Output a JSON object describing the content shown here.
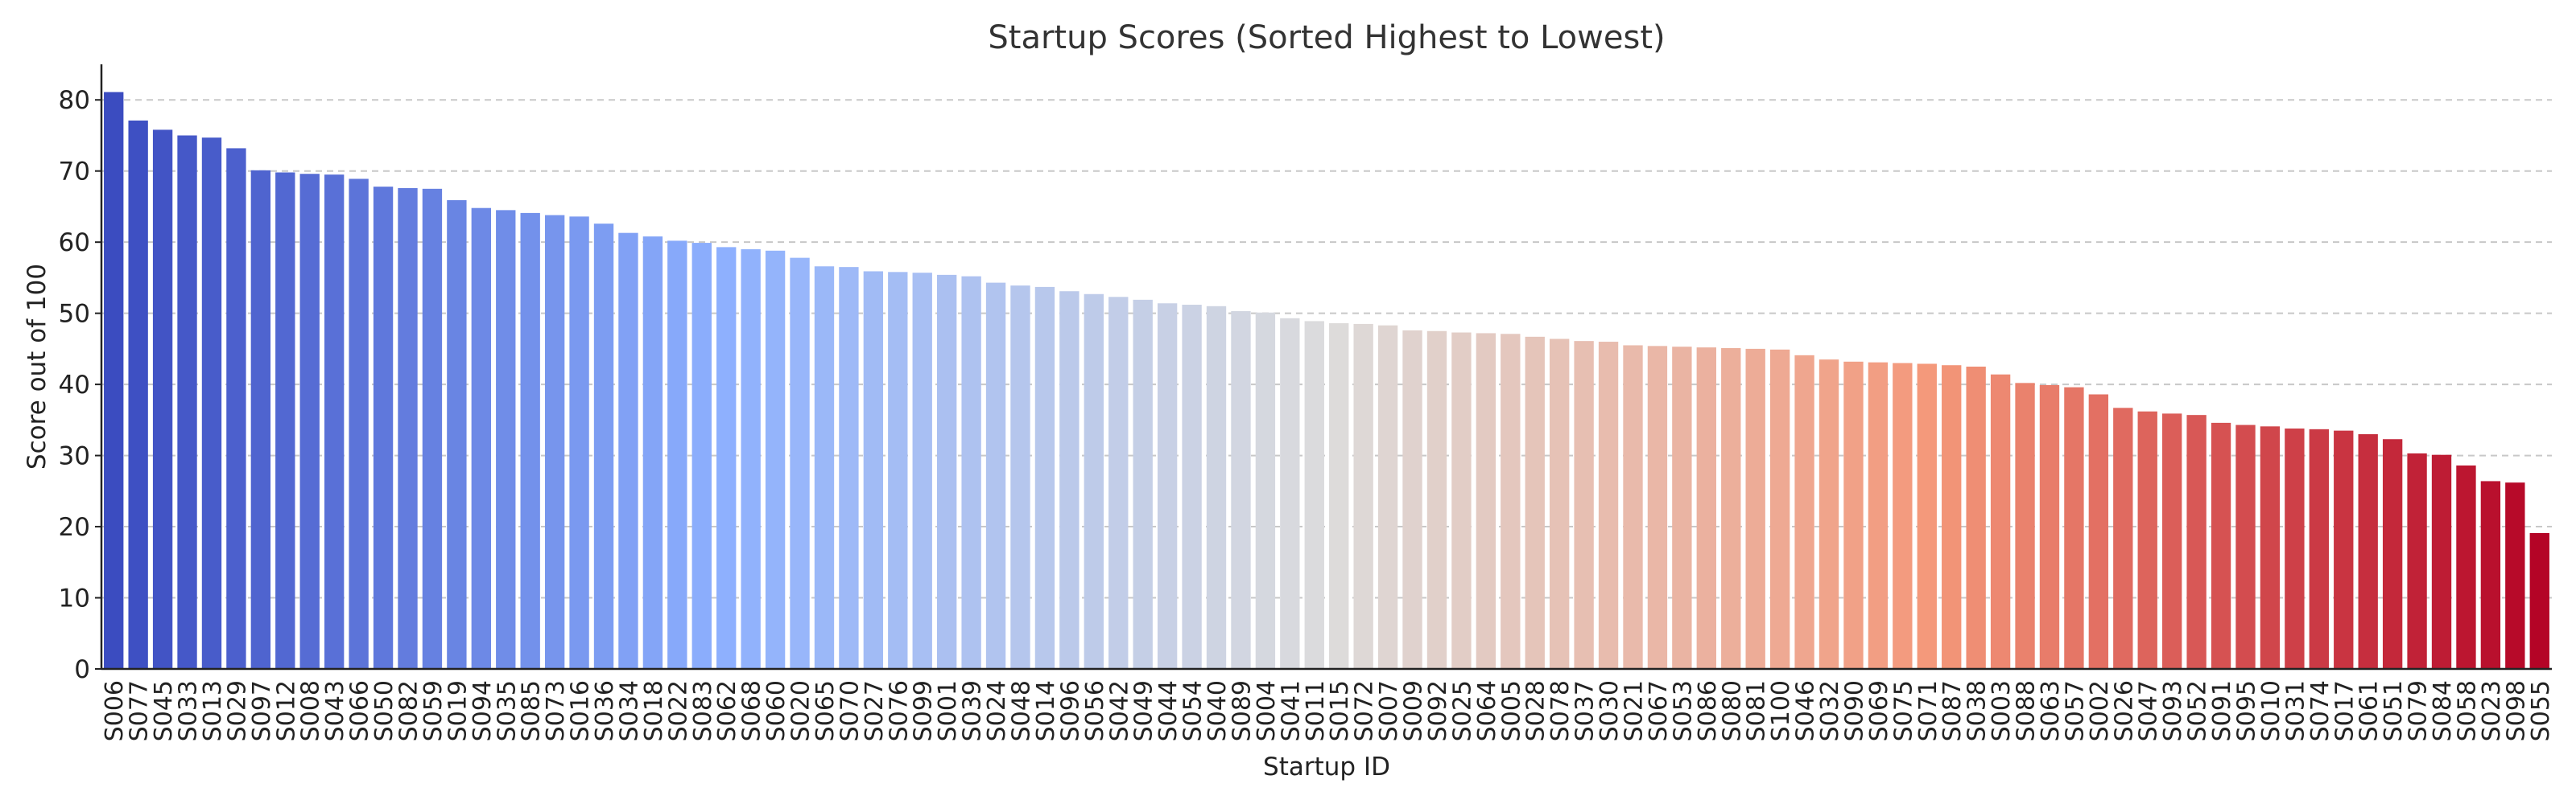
{
  "chart_data": {
    "type": "bar",
    "title": "Startup Scores (Sorted Highest to Lowest)",
    "xlabel": "Startup ID",
    "ylabel": "Score out of 100",
    "ylim": [
      0,
      85
    ],
    "yticks": [
      0,
      10,
      20,
      30,
      40,
      50,
      60,
      70,
      80
    ],
    "grid": "y-dashed",
    "colormap": "coolwarm",
    "colors": {
      "low_end": "#3b4cc0",
      "mid": "#dddcdc",
      "high_end": "#b40426"
    },
    "categories": [
      "S006",
      "S077",
      "S045",
      "S033",
      "S013",
      "S029",
      "S097",
      "S012",
      "S008",
      "S043",
      "S066",
      "S050",
      "S082",
      "S059",
      "S019",
      "S094",
      "S035",
      "S085",
      "S073",
      "S016",
      "S036",
      "S034",
      "S018",
      "S022",
      "S083",
      "S062",
      "S068",
      "S060",
      "S020",
      "S065",
      "S070",
      "S027",
      "S076",
      "S099",
      "S001",
      "S039",
      "S024",
      "S048",
      "S014",
      "S096",
      "S056",
      "S042",
      "S049",
      "S044",
      "S054",
      "S040",
      "S089",
      "S004",
      "S041",
      "S011",
      "S015",
      "S072",
      "S007",
      "S009",
      "S092",
      "S025",
      "S064",
      "S005",
      "S028",
      "S078",
      "S037",
      "S030",
      "S021",
      "S067",
      "S053",
      "S086",
      "S080",
      "S081",
      "S100",
      "S046",
      "S032",
      "S090",
      "S069",
      "S075",
      "S071",
      "S087",
      "S038",
      "S003",
      "S088",
      "S063",
      "S057",
      "S002",
      "S026",
      "S047",
      "S093",
      "S052",
      "S091",
      "S095",
      "S010",
      "S031",
      "S074",
      "S017",
      "S061",
      "S051",
      "S079",
      "S084",
      "S058",
      "S023",
      "S098",
      "S055"
    ],
    "values": [
      81.1,
      77.1,
      75.8,
      75.0,
      74.7,
      73.2,
      70.1,
      69.8,
      69.6,
      69.5,
      68.9,
      67.8,
      67.6,
      67.5,
      65.9,
      64.8,
      64.5,
      64.1,
      63.8,
      63.6,
      62.6,
      61.3,
      60.8,
      60.2,
      59.9,
      59.3,
      59.0,
      58.8,
      57.8,
      56.6,
      56.5,
      55.9,
      55.8,
      55.7,
      55.4,
      55.2,
      54.3,
      53.9,
      53.7,
      53.1,
      52.7,
      52.3,
      51.9,
      51.4,
      51.2,
      51.0,
      50.3,
      50.1,
      49.3,
      48.9,
      48.6,
      48.5,
      48.3,
      47.6,
      47.5,
      47.3,
      47.2,
      47.1,
      46.7,
      46.4,
      46.1,
      46.0,
      45.5,
      45.4,
      45.3,
      45.2,
      45.1,
      45.0,
      44.9,
      44.1,
      43.5,
      43.2,
      43.1,
      43.0,
      42.9,
      42.7,
      42.5,
      41.4,
      40.2,
      39.9,
      39.6,
      38.6,
      36.7,
      36.2,
      35.9,
      35.7,
      34.6,
      34.3,
      34.1,
      33.8,
      33.7,
      33.5,
      33.0,
      32.3,
      30.3,
      30.1,
      28.6,
      26.4,
      26.2,
      19.1
    ]
  }
}
